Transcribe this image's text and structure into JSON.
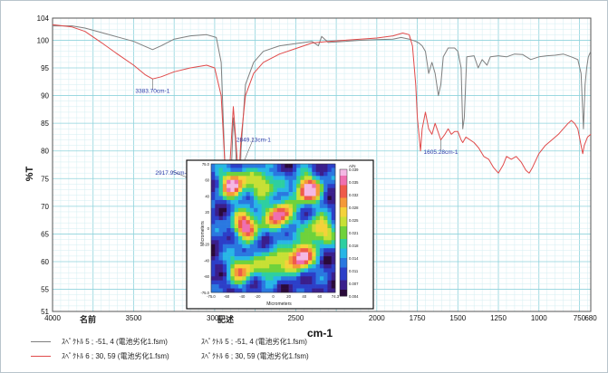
{
  "chart_data": {
    "type": "line",
    "xlabel": "cm-1",
    "ylabel": "%T",
    "xlim": [
      4000,
      680
    ],
    "ylim": [
      51,
      104
    ],
    "x_ticks": [
      "4000",
      "3500",
      "3000",
      "2500",
      "2000",
      "1750",
      "1500",
      "1250",
      "1000",
      "750",
      "680"
    ],
    "y_ticks": [
      "104",
      "100",
      "95",
      "90",
      "85",
      "80",
      "75",
      "70",
      "65",
      "60",
      "55",
      "51"
    ],
    "grid": true,
    "series": [
      {
        "color": "#7f7f7f",
        "points": [
          [
            4000,
            102.6
          ],
          [
            3880,
            102.6
          ],
          [
            3800,
            102.2
          ],
          [
            3700,
            101.4
          ],
          [
            3600,
            100.6
          ],
          [
            3500,
            99.8
          ],
          [
            3430,
            98.9
          ],
          [
            3383,
            98.3
          ],
          [
            3330,
            99.0
          ],
          [
            3250,
            100.2
          ],
          [
            3150,
            100.8
          ],
          [
            3050,
            101.0
          ],
          [
            2990,
            100.5
          ],
          [
            2960,
            96.0
          ],
          [
            2930,
            72.0
          ],
          [
            2917,
            52.0
          ],
          [
            2905,
            70.0
          ],
          [
            2885,
            86.0
          ],
          [
            2872,
            82.0
          ],
          [
            2860,
            72.0
          ],
          [
            2849,
            64.0
          ],
          [
            2838,
            80.0
          ],
          [
            2810,
            92.0
          ],
          [
            2760,
            96.0
          ],
          [
            2700,
            98.0
          ],
          [
            2600,
            99.0
          ],
          [
            2500,
            99.4
          ],
          [
            2400,
            99.8
          ],
          [
            2360,
            99.0
          ],
          [
            2340,
            100.7
          ],
          [
            2300,
            99.6
          ],
          [
            2200,
            99.8
          ],
          [
            2100,
            100.0
          ],
          [
            2000,
            100.1
          ],
          [
            1900,
            100.2
          ],
          [
            1850,
            100.5
          ],
          [
            1800,
            100.2
          ],
          [
            1760,
            99.8
          ],
          [
            1740,
            99.5
          ],
          [
            1720,
            99.0
          ],
          [
            1700,
            98.0
          ],
          [
            1680,
            94.0
          ],
          [
            1660,
            96.0
          ],
          [
            1640,
            94.0
          ],
          [
            1620,
            90.0
          ],
          [
            1605,
            92.0
          ],
          [
            1590,
            97.0
          ],
          [
            1560,
            98.6
          ],
          [
            1520,
            98.6
          ],
          [
            1500,
            98.0
          ],
          [
            1480,
            95.0
          ],
          [
            1470,
            84.0
          ],
          [
            1460,
            86.0
          ],
          [
            1445,
            97.0
          ],
          [
            1400,
            97.2
          ],
          [
            1375,
            95.0
          ],
          [
            1350,
            96.5
          ],
          [
            1320,
            95.5
          ],
          [
            1300,
            97.0
          ],
          [
            1250,
            97.2
          ],
          [
            1200,
            97.0
          ],
          [
            1150,
            97.5
          ],
          [
            1100,
            97.4
          ],
          [
            1050,
            96.5
          ],
          [
            1000,
            97.0
          ],
          [
            950,
            97.2
          ],
          [
            900,
            97.3
          ],
          [
            850,
            97.5
          ],
          [
            800,
            97.0
          ],
          [
            760,
            96.5
          ],
          [
            740,
            94.0
          ],
          [
            725,
            84.0
          ],
          [
            715,
            92.0
          ],
          [
            705,
            95.0
          ],
          [
            695,
            97.0
          ],
          [
            680,
            98.0
          ]
        ]
      },
      {
        "color": "#e04a4a",
        "points": [
          [
            4000,
            102.8
          ],
          [
            3880,
            102.4
          ],
          [
            3800,
            101.6
          ],
          [
            3700,
            99.6
          ],
          [
            3600,
            97.5
          ],
          [
            3500,
            95.5
          ],
          [
            3430,
            93.8
          ],
          [
            3383,
            93.0
          ],
          [
            3330,
            93.4
          ],
          [
            3250,
            94.3
          ],
          [
            3150,
            95.0
          ],
          [
            3050,
            95.5
          ],
          [
            3000,
            95.0
          ],
          [
            2960,
            90.0
          ],
          [
            2930,
            74.0
          ],
          [
            2917,
            72.0
          ],
          [
            2905,
            78.0
          ],
          [
            2885,
            88.0
          ],
          [
            2872,
            83.0
          ],
          [
            2860,
            78.0
          ],
          [
            2849,
            76.0
          ],
          [
            2838,
            82.0
          ],
          [
            2810,
            90.0
          ],
          [
            2760,
            94.0
          ],
          [
            2700,
            96.0
          ],
          [
            2600,
            97.5
          ],
          [
            2500,
            98.5
          ],
          [
            2400,
            99.5
          ],
          [
            2300,
            99.8
          ],
          [
            2200,
            100.0
          ],
          [
            2100,
            100.2
          ],
          [
            2000,
            100.4
          ],
          [
            1900,
            100.8
          ],
          [
            1840,
            101.3
          ],
          [
            1800,
            101.0
          ],
          [
            1780,
            99.0
          ],
          [
            1760,
            92.0
          ],
          [
            1750,
            86.0
          ],
          [
            1730,
            80.0
          ],
          [
            1720,
            84.0
          ],
          [
            1700,
            87.0
          ],
          [
            1680,
            84.0
          ],
          [
            1660,
            83.0
          ],
          [
            1640,
            85.0
          ],
          [
            1605,
            82.0
          ],
          [
            1580,
            83.0
          ],
          [
            1560,
            84.0
          ],
          [
            1540,
            83.0
          ],
          [
            1520,
            83.5
          ],
          [
            1500,
            83.5
          ],
          [
            1480,
            82.0
          ],
          [
            1470,
            81.5
          ],
          [
            1450,
            82.5
          ],
          [
            1400,
            81.5
          ],
          [
            1370,
            80.5
          ],
          [
            1340,
            79.0
          ],
          [
            1310,
            78.5
          ],
          [
            1280,
            77.0
          ],
          [
            1250,
            76.0
          ],
          [
            1220,
            77.5
          ],
          [
            1200,
            79.0
          ],
          [
            1170,
            78.5
          ],
          [
            1140,
            79.0
          ],
          [
            1110,
            78.0
          ],
          [
            1080,
            76.5
          ],
          [
            1060,
            76.0
          ],
          [
            1040,
            77.0
          ],
          [
            1000,
            79.5
          ],
          [
            960,
            81.0
          ],
          [
            920,
            82.0
          ],
          [
            880,
            83.0
          ],
          [
            850,
            84.0
          ],
          [
            820,
            85.0
          ],
          [
            800,
            85.5
          ],
          [
            780,
            85.0
          ],
          [
            760,
            84.0
          ],
          [
            740,
            81.0
          ],
          [
            730,
            79.5
          ],
          [
            720,
            81.0
          ],
          [
            700,
            82.5
          ],
          [
            680,
            83.0
          ]
        ]
      }
    ],
    "annotations": [
      {
        "text": "3383.70cm-1",
        "x": 3383,
        "y": 90.8,
        "anchor_x": 3383,
        "anchor_y": 93.0
      },
      {
        "text": "2917.95cm-1",
        "x": 3260,
        "y": 76.0,
        "anchor_x": 2917,
        "anchor_y": 72.0
      },
      {
        "text": "2849.13cm-1",
        "x": 2760,
        "y": 82.0,
        "anchor_x": 2849,
        "anchor_y": 76.0
      },
      {
        "text": "1605.28cm-1",
        "x": 1605,
        "y": 79.8,
        "anchor_x": 1605,
        "anchor_y": 82.0
      }
    ]
  },
  "inset": {
    "y_ticks": [
      "75.0",
      "60",
      "40",
      "20",
      "0",
      "-20",
      "-40",
      "-60",
      "-75.0"
    ],
    "x_ticks": [
      "-75.0",
      "-60",
      "-40",
      "-20",
      "0",
      "20",
      "40",
      "60",
      "74.3"
    ],
    "ylabel": "Micrometers",
    "xlabel": "Micrometers",
    "colorbar_title": "A/N",
    "colorbar_ticks": [
      "0.039",
      "0.035",
      "0.032",
      "0.028",
      "0.025",
      "0.021",
      "0.018",
      "0.014",
      "0.011",
      "0.007",
      "0.004"
    ]
  },
  "legend": {
    "header_name": "名前",
    "header_desc": "記述",
    "items": [
      {
        "name": "ｽﾍﾟｸﾄﾙ 5 ; -51, 4 (電池劣化1.fsm)",
        "desc": "ｽﾍﾟｸﾄﾙ 5 ; -51, 4 (電池劣化1.fsm)",
        "color": "#7f7f7f"
      },
      {
        "name": "ｽﾍﾟｸﾄﾙ 6 ; 30, 59 (電池劣化1.fsm)",
        "desc": "ｽﾍﾟｸﾄﾙ 6 ; 30, 59 (電池劣化1.fsm)",
        "color": "#e04a4a"
      }
    ]
  }
}
